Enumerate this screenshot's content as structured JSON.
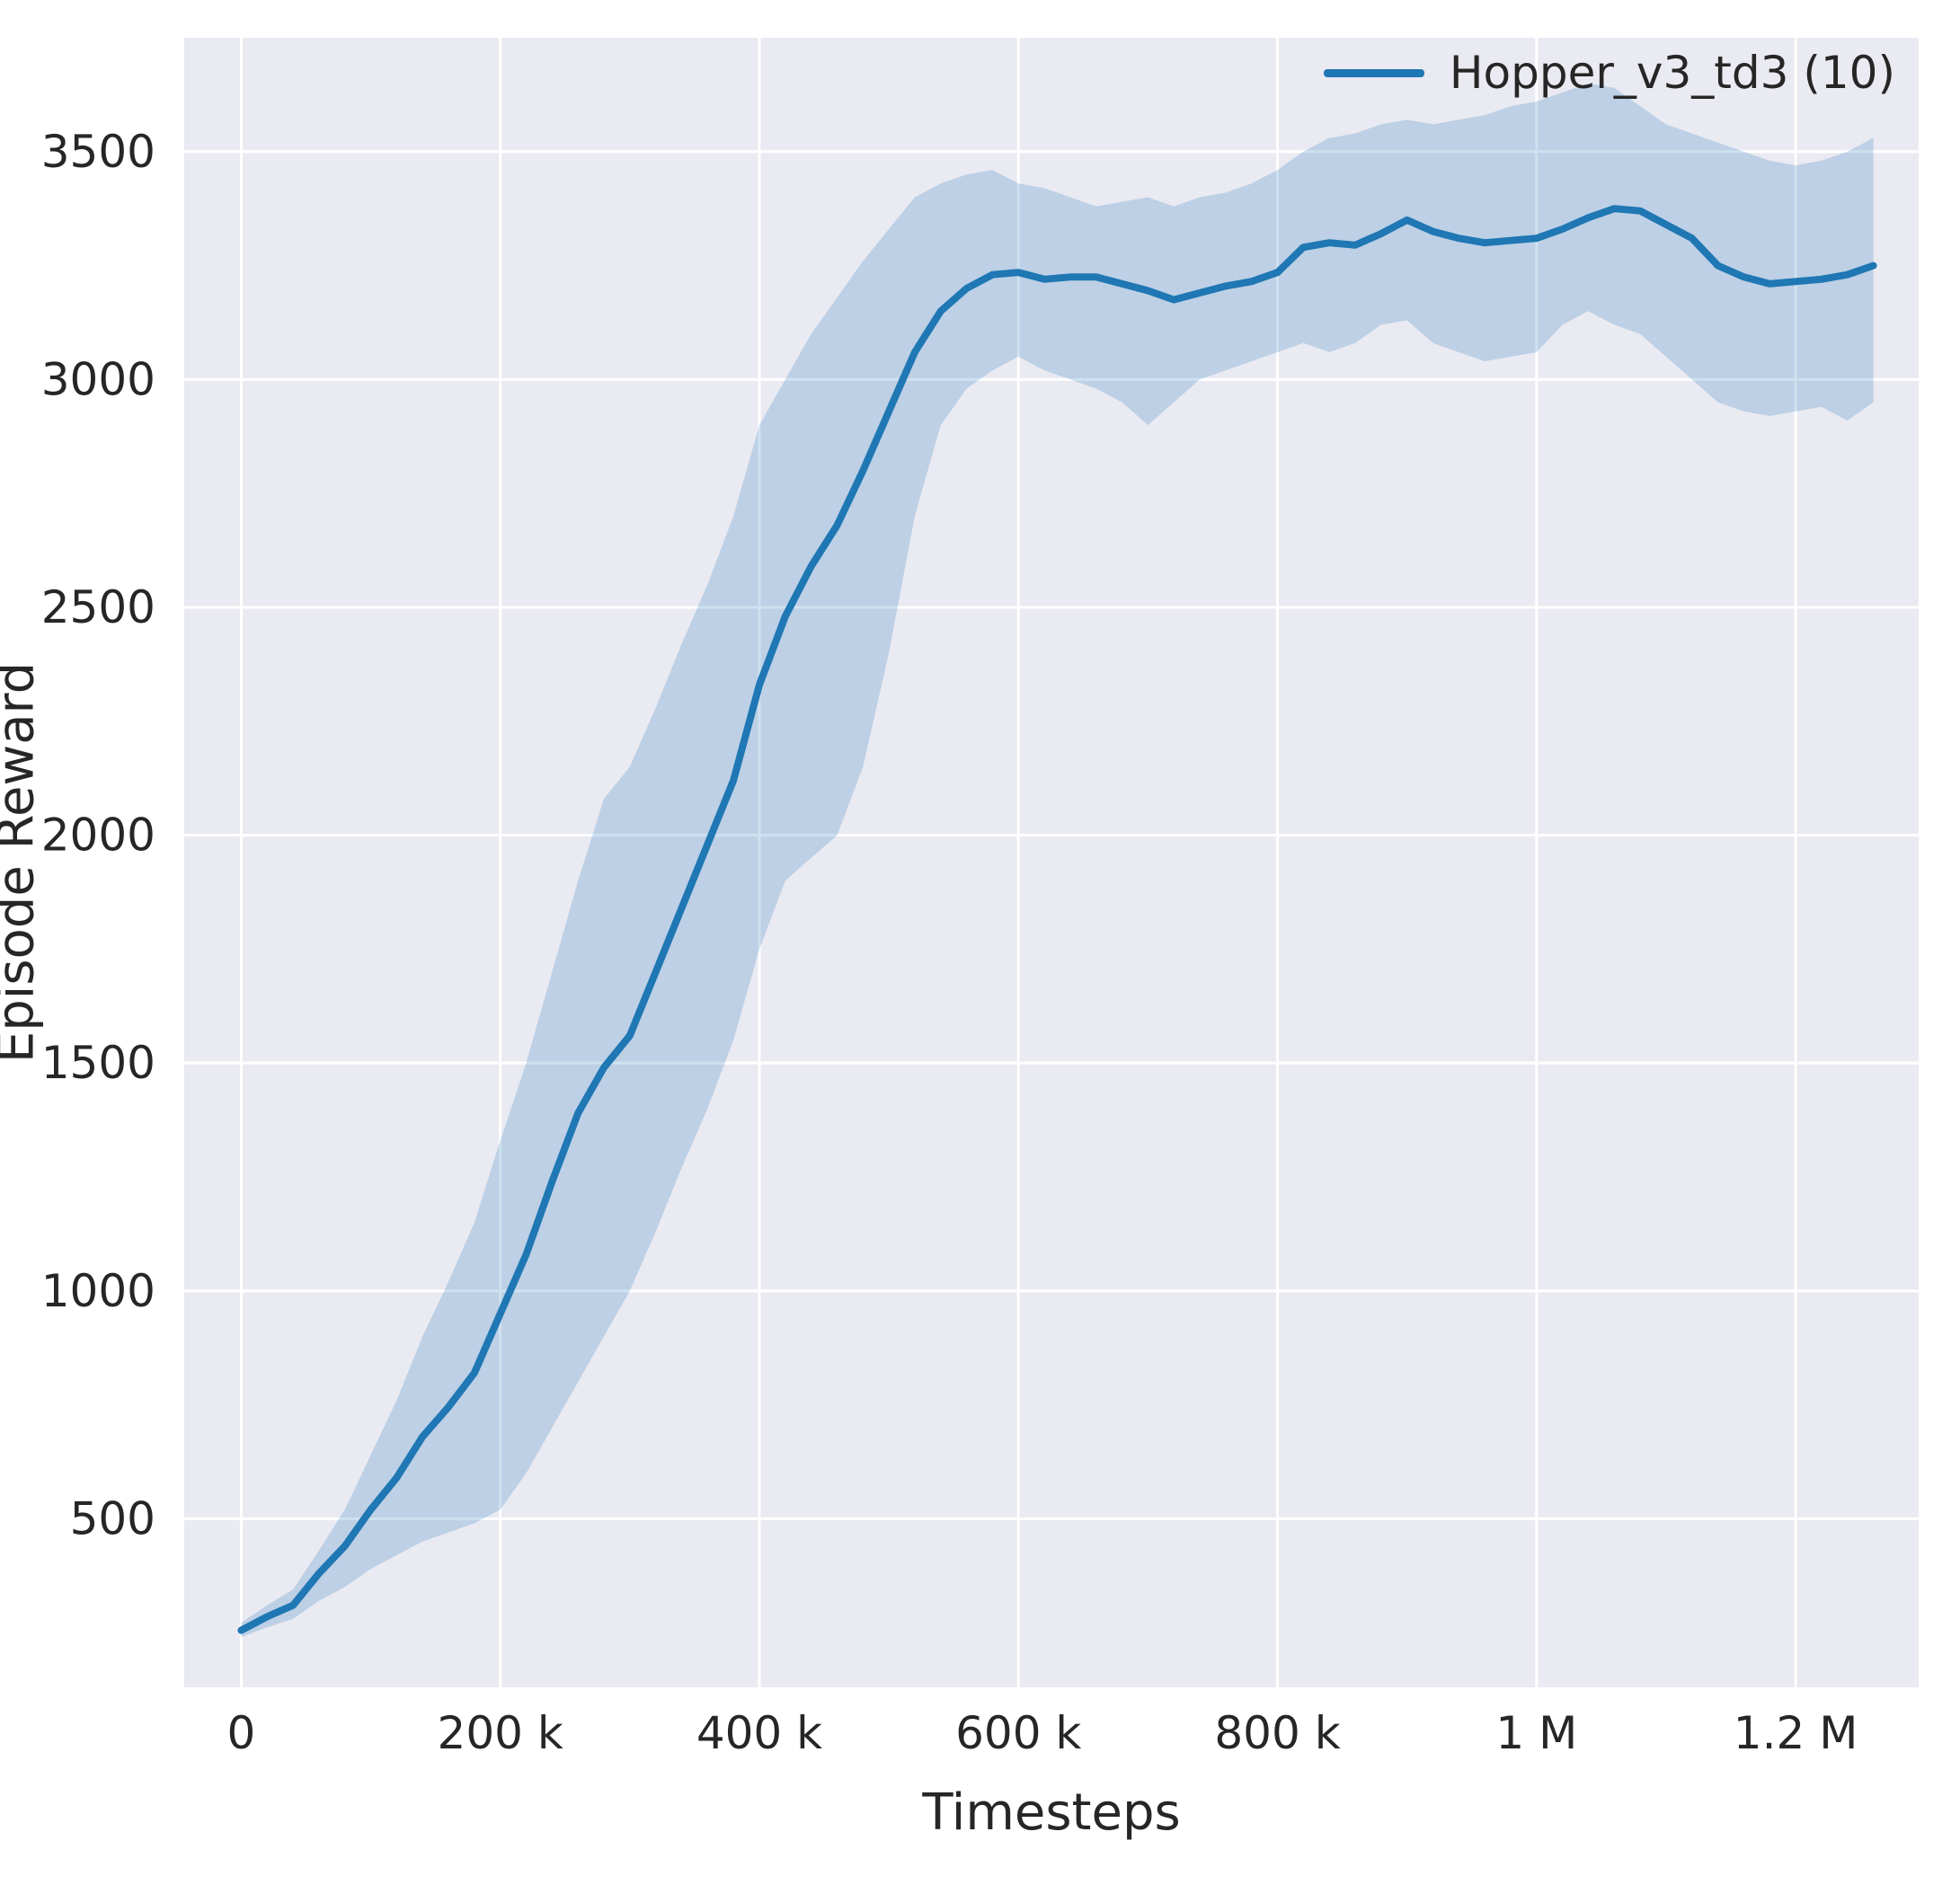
{
  "chart_data": {
    "type": "line",
    "title": "",
    "xlabel": "Timesteps",
    "ylabel": "Episode Reward",
    "xlim": [
      -44000,
      1295000
    ],
    "ylim": [
      130,
      3750
    ],
    "grid": true,
    "legend_position": "upper right",
    "colors": {
      "line": "#1f77b4",
      "band": "#1f77b4",
      "band_opacity": 0.22,
      "plot_background": "#eaeaf2",
      "grid": "#ffffff",
      "text": "#262626"
    },
    "xticks": [
      {
        "value": 0,
        "label": "0"
      },
      {
        "value": 200000,
        "label": "200 k"
      },
      {
        "value": 400000,
        "label": "400 k"
      },
      {
        "value": 600000,
        "label": "600 k"
      },
      {
        "value": 800000,
        "label": "800 k"
      },
      {
        "value": 1000000,
        "label": "1 M"
      },
      {
        "value": 1200000,
        "label": "1.2 M"
      }
    ],
    "yticks": [
      {
        "value": 500,
        "label": "500"
      },
      {
        "value": 1000,
        "label": "1000"
      },
      {
        "value": 1500,
        "label": "1500"
      },
      {
        "value": 2000,
        "label": "2000"
      },
      {
        "value": 2500,
        "label": "2500"
      },
      {
        "value": 3000,
        "label": "3000"
      },
      {
        "value": 3500,
        "label": "3500"
      }
    ],
    "series": [
      {
        "name": "Hopper_v3_td3 (10)",
        "x": [
          0,
          20000,
          40000,
          60000,
          80000,
          100000,
          120000,
          140000,
          160000,
          180000,
          200000,
          220000,
          240000,
          260000,
          280000,
          300000,
          320000,
          340000,
          360000,
          380000,
          400000,
          420000,
          440000,
          460000,
          480000,
          500000,
          520000,
          540000,
          560000,
          580000,
          600000,
          620000,
          640000,
          660000,
          680000,
          700000,
          720000,
          740000,
          760000,
          780000,
          800000,
          820000,
          840000,
          860000,
          880000,
          900000,
          920000,
          940000,
          960000,
          980000,
          1000000,
          1020000,
          1040000,
          1060000,
          1080000,
          1100000,
          1120000,
          1140000,
          1160000,
          1180000,
          1200000,
          1220000,
          1240000,
          1260000
        ],
        "mean": [
          255,
          285,
          310,
          380,
          440,
          520,
          590,
          680,
          745,
          820,
          950,
          1080,
          1240,
          1390,
          1490,
          1560,
          1700,
          1840,
          1980,
          2120,
          2330,
          2480,
          2590,
          2680,
          2800,
          2930,
          3060,
          3150,
          3200,
          3230,
          3235,
          3220,
          3225,
          3225,
          3210,
          3195,
          3175,
          3190,
          3205,
          3215,
          3235,
          3290,
          3300,
          3295,
          3320,
          3350,
          3325,
          3310,
          3300,
          3305,
          3310,
          3330,
          3355,
          3375,
          3370,
          3340,
          3310,
          3250,
          3225,
          3210,
          3215,
          3220,
          3230,
          3250
        ],
        "lower": [
          240,
          262,
          280,
          320,
          350,
          390,
          420,
          450,
          470,
          490,
          520,
          600,
          700,
          800,
          900,
          1000,
          1130,
          1270,
          1400,
          1550,
          1750,
          1900,
          1950,
          2000,
          2150,
          2400,
          2700,
          2900,
          2980,
          3020,
          3050,
          3020,
          3000,
          2980,
          2950,
          2900,
          2950,
          3000,
          3020,
          3040,
          3060,
          3080,
          3060,
          3080,
          3120,
          3130,
          3080,
          3060,
          3040,
          3050,
          3060,
          3120,
          3150,
          3120,
          3100,
          3050,
          3000,
          2950,
          2930,
          2920,
          2930,
          2940,
          2910,
          2950
        ],
        "upper": [
          272,
          310,
          345,
          430,
          520,
          640,
          760,
          900,
          1020,
          1150,
          1330,
          1500,
          1700,
          1900,
          2080,
          2150,
          2280,
          2420,
          2550,
          2700,
          2900,
          3000,
          3100,
          3180,
          3260,
          3330,
          3400,
          3430,
          3450,
          3460,
          3430,
          3420,
          3400,
          3380,
          3390,
          3400,
          3380,
          3400,
          3410,
          3430,
          3460,
          3500,
          3530,
          3540,
          3560,
          3570,
          3560,
          3570,
          3580,
          3600,
          3610,
          3630,
          3650,
          3640,
          3600,
          3560,
          3540,
          3520,
          3500,
          3480,
          3470,
          3480,
          3500,
          3530
        ]
      }
    ]
  }
}
